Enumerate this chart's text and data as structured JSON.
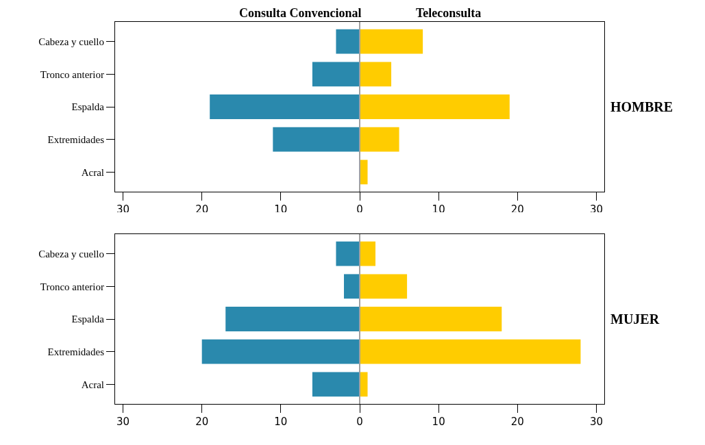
{
  "chart_data": [
    {
      "type": "bar",
      "orientation": "horizontal",
      "categories": [
        "Cabeza y cuello",
        "Tronco anterior",
        "Espalda",
        "Extremidades",
        "Acral"
      ],
      "series": [
        {
          "name": "Consulta Convencional",
          "color": "#2a89ad",
          "values": [
            -3,
            -6,
            -19,
            -11,
            0
          ]
        },
        {
          "name": "Teleconsulta",
          "color": "#ffcc00",
          "values": [
            8,
            4,
            19,
            5,
            1
          ]
        }
      ],
      "xlim": [
        -31,
        31
      ],
      "xticks": [
        {
          "value": -30,
          "label": "30"
        },
        {
          "value": -20,
          "label": "20"
        },
        {
          "value": -10,
          "label": "10"
        },
        0,
        10,
        20,
        30
      ],
      "ref_lines": [
        {
          "axis": "x",
          "value": 0,
          "color": "#a0a0a0"
        }
      ],
      "annotations": [
        "HOMBRE"
      ],
      "grid": false,
      "legend": false,
      "stacked": true
    },
    {
      "type": "bar",
      "orientation": "horizontal",
      "categories": [
        "Cabeza y cuello",
        "Tronco anterior",
        "Espalda",
        "Extremidades",
        "Acral"
      ],
      "series": [
        {
          "color": "#2a89ad",
          "values": [
            -3,
            -2,
            -17,
            -20,
            -6
          ]
        },
        {
          "color": "#ffcc00",
          "values": [
            2,
            6,
            18,
            28,
            1
          ]
        }
      ],
      "xlim": [
        -31,
        31
      ],
      "xticks": [
        {
          "value": -30,
          "label": "30"
        },
        {
          "value": -20,
          "label": "20"
        },
        {
          "value": -10,
          "label": "10"
        },
        0,
        10,
        20,
        30
      ],
      "ref_lines": [
        {
          "axis": "x",
          "value": 0,
          "color": "#a0a0a0"
        }
      ],
      "annotations": [
        "MUJER"
      ],
      "grid": false,
      "legend": false,
      "stacked": true
    }
  ]
}
